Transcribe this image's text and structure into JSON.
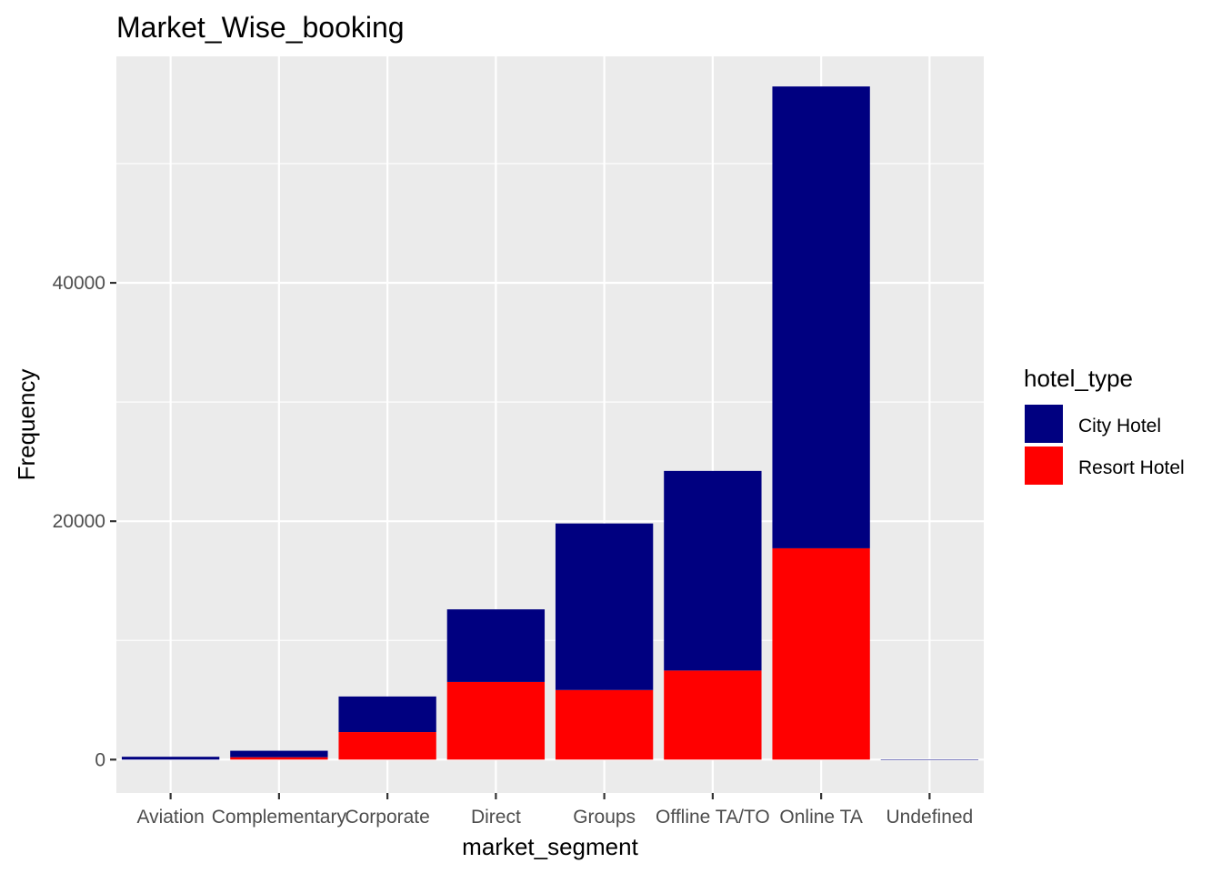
{
  "chart_data": {
    "type": "bar",
    "stacked": true,
    "title": "Market_Wise_booking",
    "xlabel": "market_segment",
    "ylabel": "Frequency",
    "categories": [
      "Aviation",
      "Complementary",
      "Corporate",
      "Direct",
      "Groups",
      "Offline TA/TO",
      "Online TA",
      "Undefined"
    ],
    "series": [
      {
        "name": "Resort Hotel",
        "color": "#ff0000",
        "values": [
          0,
          201,
          2309,
          6513,
          5836,
          7472,
          17729,
          0
        ]
      },
      {
        "name": "City Hotel",
        "color": "#000080",
        "values": [
          237,
          542,
          2986,
          6093,
          13975,
          16747,
          38748,
          2
        ]
      }
    ],
    "yticks": [
      0,
      20000,
      40000
    ],
    "ylim": [
      -2800,
      59000
    ],
    "grid": true,
    "legend": {
      "title": "hotel_type",
      "position": "right",
      "entries": [
        "City Hotel",
        "Resort Hotel"
      ]
    },
    "panel_background": "#ebebeb",
    "grid_color": "#ffffff"
  }
}
